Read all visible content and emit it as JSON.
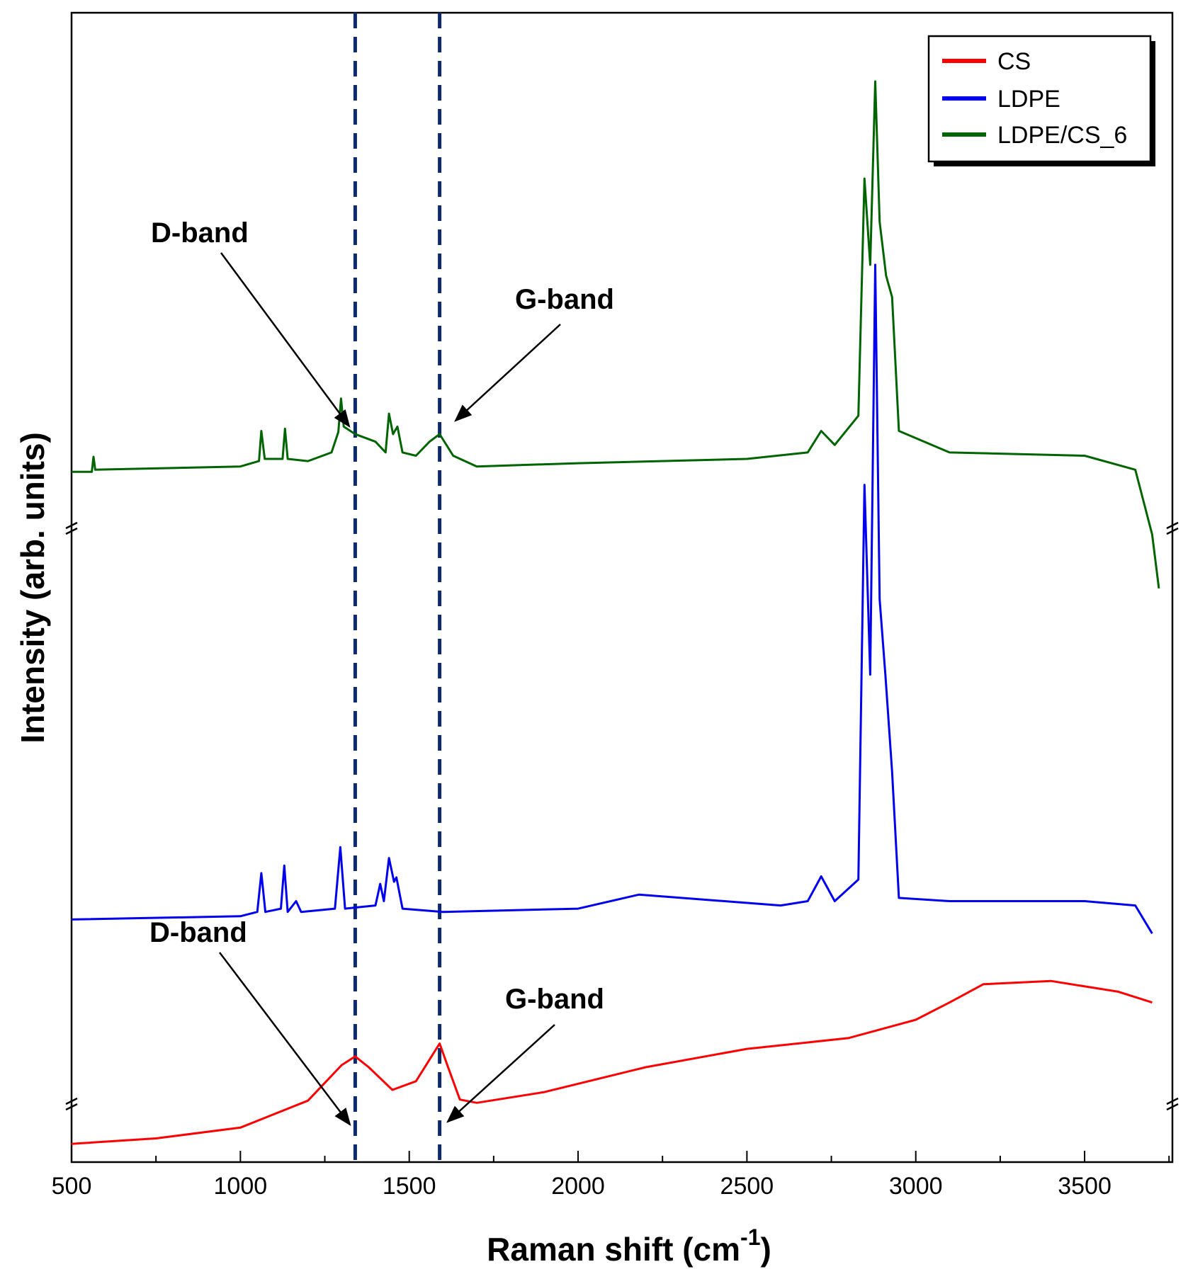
{
  "chart_data": {
    "type": "line",
    "title": "",
    "xlabel": "Raman shift (cm",
    "xlabel_sup": "-1",
    "xlabel_close": ")",
    "ylabel": "Intensity (arb. units)",
    "xlim": [
      500,
      3760
    ],
    "ylim": [
      0,
      100
    ],
    "y_axis_breaks": "two axis breaks (marked with double slashes) separating the vertically offset spectra",
    "y_ticks_shown": false,
    "xticks": [
      500,
      1000,
      1500,
      2000,
      2500,
      3000,
      3500
    ],
    "xtick_labels": [
      "500",
      "1000",
      "1500",
      "2000",
      "2500",
      "3000",
      "3500"
    ],
    "grid": false,
    "legend": {
      "position": "top-right",
      "entries": [
        "CS",
        "LDPE",
        "LDPE/CS_6"
      ]
    },
    "reference_lines": [
      {
        "x": 1340,
        "style": "dashed",
        "color": "#0d2a6b"
      },
      {
        "x": 1590,
        "style": "dashed",
        "color": "#0d2a6b"
      }
    ],
    "annotations": [
      {
        "text": "D-band",
        "panel": "top",
        "target_x": 1340
      },
      {
        "text": "G-band",
        "panel": "top",
        "target_x": 1590
      },
      {
        "text": "D-band",
        "panel": "bottom",
        "target_x": 1340
      },
      {
        "text": "G-band",
        "panel": "bottom",
        "target_x": 1590
      }
    ],
    "series": [
      {
        "name": "CS",
        "color": "#ff0000",
        "points": [
          [
            500,
            1.5
          ],
          [
            750,
            2.0
          ],
          [
            1000,
            3.0
          ],
          [
            1200,
            5.5
          ],
          [
            1300,
            8.8
          ],
          [
            1340,
            9.6
          ],
          [
            1380,
            8.6
          ],
          [
            1450,
            6.5
          ],
          [
            1520,
            7.3
          ],
          [
            1570,
            9.8
          ],
          [
            1590,
            10.8
          ],
          [
            1615,
            8.6
          ],
          [
            1650,
            5.6
          ],
          [
            1700,
            5.3
          ],
          [
            1900,
            6.3
          ],
          [
            2200,
            8.6
          ],
          [
            2500,
            10.3
          ],
          [
            2800,
            11.3
          ],
          [
            3000,
            13.0
          ],
          [
            3100,
            14.6
          ],
          [
            3200,
            16.3
          ],
          [
            3400,
            16.6
          ],
          [
            3600,
            15.6
          ],
          [
            3700,
            14.6
          ]
        ]
      },
      {
        "name": "LDPE",
        "color": "#0000ee",
        "points": [
          [
            500,
            22.3
          ],
          [
            1000,
            22.6
          ],
          [
            1050,
            23.0
          ],
          [
            1062,
            26.6
          ],
          [
            1074,
            23.0
          ],
          [
            1120,
            23.3
          ],
          [
            1130,
            27.3
          ],
          [
            1140,
            23.0
          ],
          [
            1165,
            24.0
          ],
          [
            1180,
            23.0
          ],
          [
            1280,
            23.3
          ],
          [
            1296,
            29.0
          ],
          [
            1310,
            23.3
          ],
          [
            1400,
            23.6
          ],
          [
            1414,
            25.6
          ],
          [
            1425,
            24.0
          ],
          [
            1440,
            28.0
          ],
          [
            1455,
            25.8
          ],
          [
            1462,
            26.2
          ],
          [
            1480,
            23.3
          ],
          [
            1600,
            23.0
          ],
          [
            2000,
            23.3
          ],
          [
            2180,
            24.6
          ],
          [
            2600,
            23.6
          ],
          [
            2680,
            24.0
          ],
          [
            2720,
            26.3
          ],
          [
            2760,
            24.0
          ],
          [
            2830,
            26.0
          ],
          [
            2848,
            62.6
          ],
          [
            2865,
            45.0
          ],
          [
            2880,
            83.0
          ],
          [
            2893,
            52.0
          ],
          [
            2910,
            45.0
          ],
          [
            2930,
            36.0
          ],
          [
            2950,
            24.3
          ],
          [
            3100,
            24.0
          ],
          [
            3500,
            24.0
          ],
          [
            3650,
            23.6
          ],
          [
            3700,
            21.0
          ]
        ]
      },
      {
        "name": "LDPE/CS_6",
        "color": "#006400",
        "points": [
          [
            500,
            63.8
          ],
          [
            560,
            63.8
          ],
          [
            565,
            65.2
          ],
          [
            570,
            64.0
          ],
          [
            1000,
            64.3
          ],
          [
            1055,
            64.8
          ],
          [
            1062,
            67.6
          ],
          [
            1072,
            65.0
          ],
          [
            1125,
            65.0
          ],
          [
            1132,
            67.8
          ],
          [
            1140,
            65.0
          ],
          [
            1200,
            64.8
          ],
          [
            1270,
            65.6
          ],
          [
            1290,
            67.5
          ],
          [
            1298,
            70.6
          ],
          [
            1306,
            68.0
          ],
          [
            1340,
            67.3
          ],
          [
            1400,
            66.6
          ],
          [
            1430,
            65.6
          ],
          [
            1440,
            69.2
          ],
          [
            1452,
            67.3
          ],
          [
            1465,
            68.0
          ],
          [
            1480,
            65.6
          ],
          [
            1520,
            65.3
          ],
          [
            1560,
            66.6
          ],
          [
            1590,
            67.3
          ],
          [
            1630,
            65.3
          ],
          [
            1700,
            64.3
          ],
          [
            2000,
            64.6
          ],
          [
            2500,
            65.0
          ],
          [
            2680,
            65.6
          ],
          [
            2720,
            67.6
          ],
          [
            2760,
            66.3
          ],
          [
            2830,
            69.0
          ],
          [
            2848,
            91.0
          ],
          [
            2865,
            83.0
          ],
          [
            2880,
            100.0
          ],
          [
            2893,
            87.0
          ],
          [
            2912,
            82.0
          ],
          [
            2930,
            80.0
          ],
          [
            2950,
            67.6
          ],
          [
            3100,
            65.6
          ],
          [
            3500,
            65.3
          ],
          [
            3650,
            64.0
          ],
          [
            3700,
            58.0
          ],
          [
            3720,
            53.0
          ]
        ]
      }
    ]
  }
}
